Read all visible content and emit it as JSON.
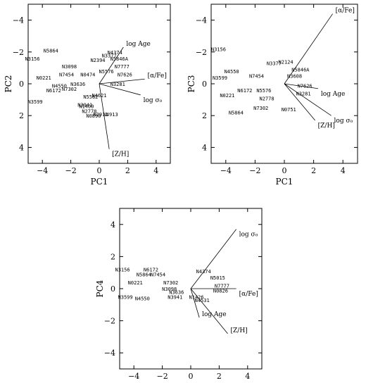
{
  "chart_data": [
    {
      "type": "scatter",
      "xlabel": "PC1",
      "ylabel": "PC2",
      "xlim": [
        -5,
        5
      ],
      "ylim": [
        5,
        -5
      ],
      "xticks": [
        -4,
        -2,
        0,
        2,
        4
      ],
      "yticks": [
        -4,
        -2,
        0,
        2,
        4
      ],
      "vectors": [
        {
          "label": "log Age",
          "x": 1.7,
          "y": -2.3
        },
        {
          "label": "[α/Fe]",
          "x": 3.2,
          "y": -0.3
        },
        {
          "label": "log σ₀",
          "x": 2.9,
          "y": 0.7
        },
        {
          "label": "[Z/H]",
          "x": 0.7,
          "y": 4.1
        }
      ],
      "points": [
        {
          "label": "N5864",
          "x": -3.4,
          "y": -2.1
        },
        {
          "label": "N3156",
          "x": -4.7,
          "y": -1.6
        },
        {
          "label": "N3098",
          "x": -2.1,
          "y": -1.1
        },
        {
          "label": "N7454",
          "x": -2.3,
          "y": -0.6
        },
        {
          "label": "N0221",
          "x": -3.9,
          "y": -0.4
        },
        {
          "label": "N4550",
          "x": -2.8,
          "y": 0.1
        },
        {
          "label": "N7302",
          "x": -2.1,
          "y": 0.3
        },
        {
          "label": "N6172",
          "x": -3.2,
          "y": 0.4
        },
        {
          "label": "N3636",
          "x": -1.5,
          "y": 0.0
        },
        {
          "label": "N3599",
          "x": -4.5,
          "y": 1.1
        },
        {
          "label": "N2394",
          "x": -0.1,
          "y": -1.5
        },
        {
          "label": "N0474",
          "x": -0.8,
          "y": -0.6
        },
        {
          "label": "N5576",
          "x": 0.5,
          "y": -0.8
        },
        {
          "label": "N1400",
          "x": -0.9,
          "y": 1.4
        },
        {
          "label": "N2778",
          "x": -0.7,
          "y": 1.7
        },
        {
          "label": "N3941",
          "x": -1.0,
          "y": 1.3
        },
        {
          "label": "N0890",
          "x": -0.4,
          "y": 2.0
        },
        {
          "label": "N2911",
          "x": 0.1,
          "y": 1.9
        },
        {
          "label": "N5582",
          "x": -0.6,
          "y": 0.8
        },
        {
          "label": "N4621",
          "x": 0.0,
          "y": 0.7
        },
        {
          "label": "N4913",
          "x": 0.8,
          "y": 1.9
        },
        {
          "label": "N3377",
          "x": 0.7,
          "y": -1.8
        },
        {
          "label": "N5846A",
          "x": 1.4,
          "y": -1.6
        },
        {
          "label": "N7777",
          "x": 1.6,
          "y": -1.1
        },
        {
          "label": "N7626",
          "x": 1.8,
          "y": -0.6
        },
        {
          "label": "N3281",
          "x": 1.3,
          "y": 0.0
        },
        {
          "label": "N4374",
          "x": 1.1,
          "y": -2.0
        }
      ]
    },
    {
      "type": "scatter",
      "xlabel": "PC1",
      "ylabel": "PC3",
      "xlim": [
        -5,
        5
      ],
      "ylim": [
        5,
        -5
      ],
      "xticks": [
        -4,
        -2,
        0,
        2,
        4
      ],
      "yticks": [
        -4,
        -2,
        0,
        2,
        4
      ],
      "vectors": [
        {
          "label": "[α/Fe]",
          "x": 3.3,
          "y": -4.4
        },
        {
          "label": "log Age",
          "x": 2.3,
          "y": 0.3
        },
        {
          "label": "log σ₀",
          "x": 3.2,
          "y": 2.0
        },
        {
          "label": "[Z/H]",
          "x": 2.1,
          "y": 2.3
        }
      ],
      "points": [
        {
          "label": "N3156",
          "x": -4.5,
          "y": -2.2
        },
        {
          "label": "N4550",
          "x": -3.6,
          "y": -0.8
        },
        {
          "label": "N3599",
          "x": -4.4,
          "y": -0.4
        },
        {
          "label": "N7454",
          "x": -1.9,
          "y": -0.5
        },
        {
          "label": "N0221",
          "x": -3.9,
          "y": 0.7
        },
        {
          "label": "N6172",
          "x": -2.7,
          "y": 0.4
        },
        {
          "label": "N5864",
          "x": -3.3,
          "y": 1.8
        },
        {
          "label": "N7302",
          "x": -1.6,
          "y": 1.5
        },
        {
          "label": "N0751",
          "x": 0.3,
          "y": 1.6
        },
        {
          "label": "N3377",
          "x": -0.7,
          "y": -1.3
        },
        {
          "label": "N2124",
          "x": 0.1,
          "y": -1.4
        },
        {
          "label": "N3608",
          "x": 0.7,
          "y": -0.5
        },
        {
          "label": "N5846A",
          "x": 1.1,
          "y": -0.9
        },
        {
          "label": "N7626",
          "x": 1.4,
          "y": 0.1
        },
        {
          "label": "N3281",
          "x": 1.3,
          "y": 0.6
        },
        {
          "label": "N2778",
          "x": -1.2,
          "y": 0.9
        },
        {
          "label": "N5576",
          "x": -1.4,
          "y": 0.4
        }
      ]
    },
    {
      "type": "scatter",
      "xlabel": "PC1",
      "ylabel": "PC4",
      "xlim": [
        -5,
        5
      ],
      "ylim": [
        -5,
        5
      ],
      "xticks": [
        -4,
        -2,
        0,
        2,
        4
      ],
      "yticks": [
        -4,
        -2,
        0,
        2,
        4
      ],
      "vectors": [
        {
          "label": "log σ₀",
          "x": 3.2,
          "y": 3.7
        },
        {
          "label": "[α/Fe]",
          "x": 3.2,
          "y": 0.0
        },
        {
          "label": "log Age",
          "x": 0.6,
          "y": -1.8
        },
        {
          "label": "[Z/H]",
          "x": 2.6,
          "y": -2.8
        }
      ],
      "points": [
        {
          "label": "N3156",
          "x": -4.8,
          "y": 1.2
        },
        {
          "label": "N6172",
          "x": -2.8,
          "y": 1.2
        },
        {
          "label": "N5864",
          "x": -3.3,
          "y": 0.9
        },
        {
          "label": "N7454",
          "x": -2.3,
          "y": 0.9
        },
        {
          "label": "N0221",
          "x": -3.9,
          "y": 0.4
        },
        {
          "label": "N7302",
          "x": -1.4,
          "y": 0.4
        },
        {
          "label": "N3098",
          "x": -1.5,
          "y": 0.0
        },
        {
          "label": "N3636",
          "x": -1.0,
          "y": -0.2
        },
        {
          "label": "N3599",
          "x": -4.6,
          "y": -0.5
        },
        {
          "label": "N4550",
          "x": -3.4,
          "y": -0.6
        },
        {
          "label": "N3941",
          "x": -1.1,
          "y": -0.5
        },
        {
          "label": "N4374",
          "x": 0.9,
          "y": 1.1
        },
        {
          "label": "N5015",
          "x": 1.9,
          "y": 0.7
        },
        {
          "label": "N7777",
          "x": 2.2,
          "y": 0.2
        },
        {
          "label": "N0826",
          "x": 2.1,
          "y": -0.1
        },
        {
          "label": "N1426",
          "x": 0.4,
          "y": -0.5
        },
        {
          "label": "N4531",
          "x": 0.8,
          "y": -0.7
        }
      ]
    }
  ]
}
